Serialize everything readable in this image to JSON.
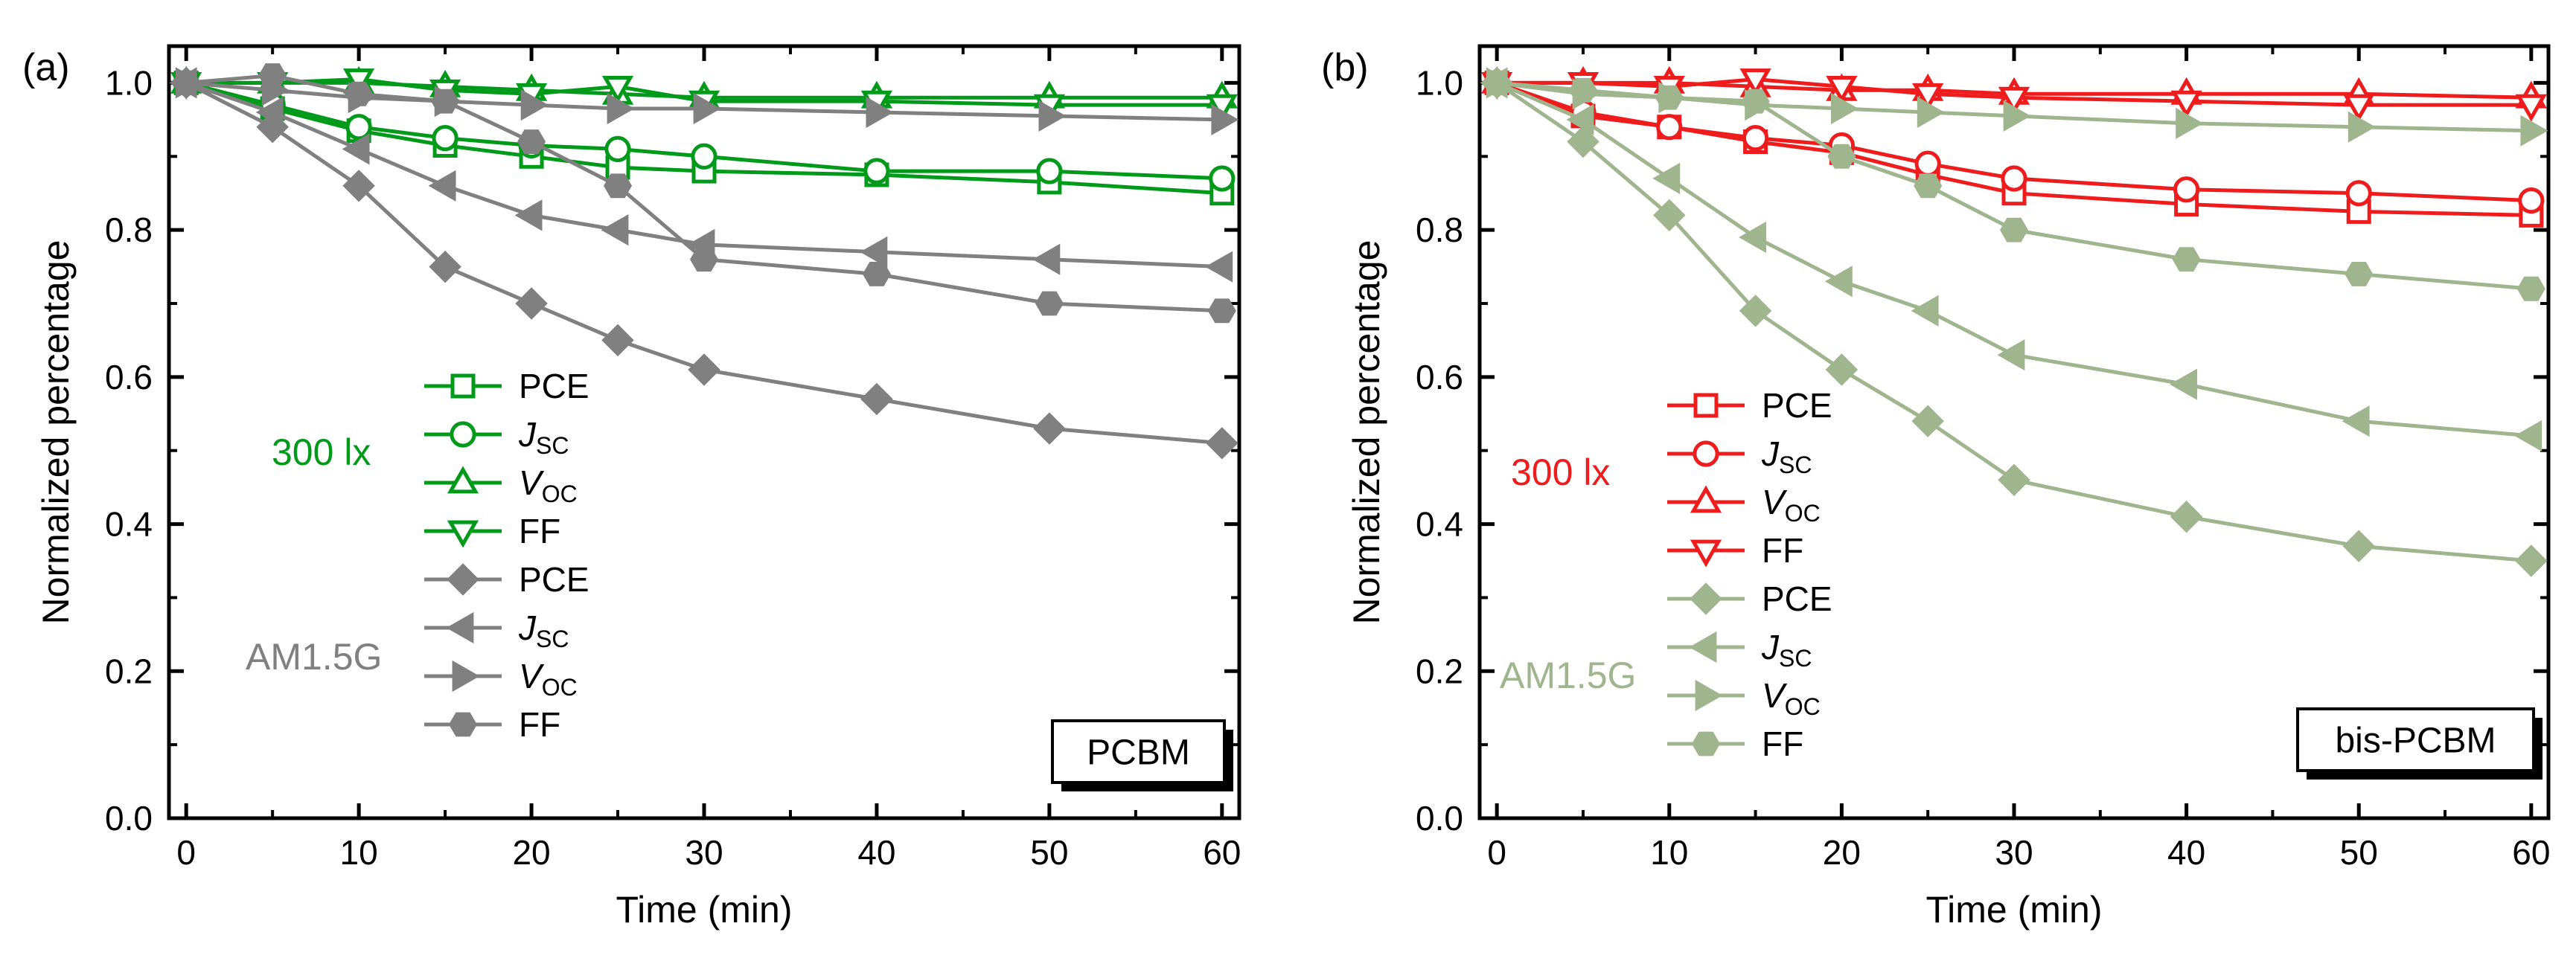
{
  "chart_data": [
    {
      "panel_label": "(a)",
      "type": "line",
      "xlabel": "Time (min)",
      "ylabel": "Normalized percentage",
      "xlim": [
        -1,
        61
      ],
      "ylim": [
        0,
        1.05
      ],
      "xticks": [
        0,
        10,
        20,
        30,
        40,
        50,
        60
      ],
      "yticks": [
        0.0,
        0.2,
        0.4,
        0.6,
        0.8,
        1.0
      ],
      "grid": false,
      "legend_position": "center-left",
      "box_label": "PCBM",
      "groups": [
        {
          "label": "300 lx",
          "color": "#009a1a"
        },
        {
          "label": "AM1.5G",
          "color": "#808080"
        }
      ],
      "series": [
        {
          "name": "PCE",
          "group": 0,
          "color": "#009a1a",
          "marker": "square",
          "filled": false,
          "x": [
            0,
            5,
            10,
            15,
            20,
            25,
            30,
            40,
            50,
            60
          ],
          "y": [
            1.0,
            0.965,
            0.935,
            0.915,
            0.9,
            0.885,
            0.88,
            0.875,
            0.865,
            0.85
          ]
        },
        {
          "name": "J",
          "sub": "SC",
          "group": 0,
          "color": "#009a1a",
          "marker": "circle",
          "filled": false,
          "x": [
            0,
            5,
            10,
            15,
            20,
            25,
            30,
            40,
            50,
            60
          ],
          "y": [
            1.0,
            0.97,
            0.94,
            0.925,
            0.915,
            0.91,
            0.9,
            0.88,
            0.88,
            0.87
          ]
        },
        {
          "name": "V",
          "sub": "OC",
          "group": 0,
          "color": "#009a1a",
          "marker": "triangle-up",
          "filled": false,
          "x": [
            0,
            5,
            10,
            15,
            20,
            25,
            30,
            40,
            50,
            60
          ],
          "y": [
            1.0,
            1.0,
            1.0,
            0.995,
            0.99,
            0.985,
            0.98,
            0.98,
            0.98,
            0.98
          ]
        },
        {
          "name": "FF",
          "group": 0,
          "color": "#009a1a",
          "marker": "triangle-down",
          "filled": false,
          "x": [
            0,
            5,
            10,
            15,
            20,
            25,
            30,
            40,
            50,
            60
          ],
          "y": [
            1.0,
            1.0,
            1.005,
            0.99,
            0.985,
            0.995,
            0.975,
            0.975,
            0.97,
            0.97
          ]
        },
        {
          "name": "PCE",
          "group": 1,
          "color": "#808080",
          "marker": "diamond",
          "filled": true,
          "x": [
            0,
            5,
            10,
            15,
            20,
            25,
            30,
            40,
            50,
            60
          ],
          "y": [
            1.0,
            0.94,
            0.86,
            0.75,
            0.7,
            0.65,
            0.61,
            0.57,
            0.53,
            0.51
          ]
        },
        {
          "name": "J",
          "sub": "SC",
          "group": 1,
          "color": "#808080",
          "marker": "triangle-left",
          "filled": true,
          "x": [
            0,
            5,
            10,
            15,
            20,
            25,
            30,
            40,
            50,
            60
          ],
          "y": [
            1.0,
            0.96,
            0.91,
            0.86,
            0.82,
            0.8,
            0.78,
            0.77,
            0.76,
            0.75
          ]
        },
        {
          "name": "V",
          "sub": "OC",
          "group": 1,
          "color": "#808080",
          "marker": "triangle-right",
          "filled": true,
          "x": [
            0,
            5,
            10,
            15,
            20,
            25,
            30,
            40,
            50,
            60
          ],
          "y": [
            1.0,
            0.99,
            0.98,
            0.975,
            0.97,
            0.965,
            0.965,
            0.96,
            0.955,
            0.95
          ]
        },
        {
          "name": "FF",
          "group": 1,
          "color": "#808080",
          "marker": "hexagon",
          "filled": true,
          "x": [
            0,
            5,
            10,
            15,
            20,
            25,
            30,
            40,
            50,
            60
          ],
          "y": [
            1.0,
            1.01,
            0.985,
            0.975,
            0.92,
            0.86,
            0.76,
            0.74,
            0.7,
            0.69
          ]
        }
      ]
    },
    {
      "panel_label": "(b)",
      "type": "line",
      "xlabel": "Time (min)",
      "ylabel": "Normalized percentage",
      "xlim": [
        -1,
        61
      ],
      "ylim": [
        0,
        1.05
      ],
      "xticks": [
        0,
        10,
        20,
        30,
        40,
        50,
        60
      ],
      "yticks": [
        0.0,
        0.2,
        0.4,
        0.6,
        0.8,
        1.0
      ],
      "grid": false,
      "legend_position": "center-left",
      "box_label": "bis-PCBM",
      "groups": [
        {
          "label": "300 lx",
          "color": "#ee1c1c"
        },
        {
          "label": "AM1.5G",
          "color": "#9fb58e"
        }
      ],
      "series": [
        {
          "name": "PCE",
          "group": 0,
          "color": "#ee1c1c",
          "marker": "square",
          "filled": false,
          "x": [
            0,
            5,
            10,
            15,
            20,
            25,
            30,
            40,
            50,
            60
          ],
          "y": [
            1.0,
            0.955,
            0.94,
            0.92,
            0.905,
            0.875,
            0.85,
            0.835,
            0.825,
            0.82
          ]
        },
        {
          "name": "J",
          "sub": "SC",
          "group": 0,
          "color": "#ee1c1c",
          "marker": "circle",
          "filled": false,
          "x": [
            0,
            5,
            10,
            15,
            20,
            25,
            30,
            40,
            50,
            60
          ],
          "y": [
            1.0,
            0.96,
            0.94,
            0.925,
            0.915,
            0.89,
            0.87,
            0.855,
            0.85,
            0.84
          ]
        },
        {
          "name": "V",
          "sub": "OC",
          "group": 0,
          "color": "#ee1c1c",
          "marker": "triangle-up",
          "filled": false,
          "x": [
            0,
            5,
            10,
            15,
            20,
            25,
            30,
            40,
            50,
            60
          ],
          "y": [
            1.0,
            1.0,
            1.0,
            0.995,
            0.99,
            0.99,
            0.985,
            0.985,
            0.985,
            0.98
          ]
        },
        {
          "name": "FF",
          "group": 0,
          "color": "#ee1c1c",
          "marker": "triangle-down",
          "filled": false,
          "x": [
            0,
            5,
            10,
            15,
            20,
            25,
            30,
            40,
            50,
            60
          ],
          "y": [
            1.0,
            1.0,
            0.995,
            1.005,
            0.995,
            0.985,
            0.98,
            0.975,
            0.97,
            0.97
          ]
        },
        {
          "name": "PCE",
          "group": 1,
          "color": "#9fb58e",
          "marker": "diamond",
          "filled": true,
          "x": [
            0,
            5,
            10,
            15,
            20,
            25,
            30,
            40,
            50,
            60
          ],
          "y": [
            1.0,
            0.92,
            0.82,
            0.69,
            0.61,
            0.54,
            0.46,
            0.41,
            0.37,
            0.35
          ]
        },
        {
          "name": "J",
          "sub": "SC",
          "group": 1,
          "color": "#9fb58e",
          "marker": "triangle-left",
          "filled": true,
          "x": [
            0,
            5,
            10,
            15,
            20,
            25,
            30,
            40,
            50,
            60
          ],
          "y": [
            1.0,
            0.95,
            0.87,
            0.79,
            0.73,
            0.69,
            0.63,
            0.59,
            0.54,
            0.52
          ]
        },
        {
          "name": "V",
          "sub": "OC",
          "group": 1,
          "color": "#9fb58e",
          "marker": "triangle-right",
          "filled": true,
          "x": [
            0,
            5,
            10,
            15,
            20,
            25,
            30,
            40,
            50,
            60
          ],
          "y": [
            1.0,
            0.985,
            0.98,
            0.97,
            0.965,
            0.96,
            0.955,
            0.945,
            0.94,
            0.935
          ]
        },
        {
          "name": "FF",
          "group": 1,
          "color": "#9fb58e",
          "marker": "hexagon",
          "filled": true,
          "x": [
            0,
            5,
            10,
            15,
            20,
            25,
            30,
            40,
            50,
            60
          ],
          "y": [
            1.0,
            0.99,
            0.98,
            0.975,
            0.9,
            0.86,
            0.8,
            0.76,
            0.74,
            0.72
          ]
        }
      ]
    }
  ]
}
